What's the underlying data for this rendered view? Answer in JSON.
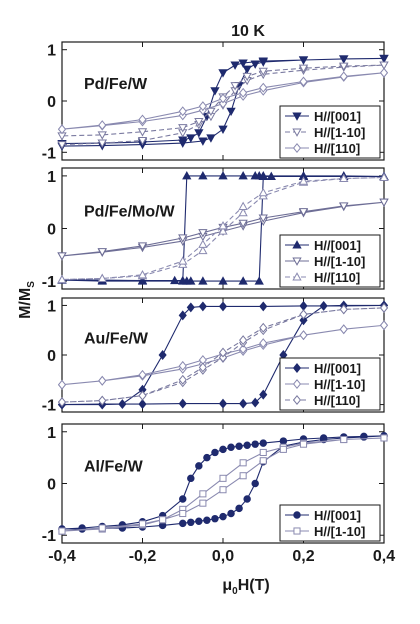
{
  "figure": {
    "title": "10 K",
    "ylabel": "M/M",
    "ylabel_sub": "S",
    "xlabel_mu": "μ",
    "xlabel_sub": "0",
    "xlabel_rest": "H(T)"
  },
  "chart_data": [
    {
      "type": "line",
      "label": "Pd/Fe/W",
      "xlim": [
        -0.4,
        0.4
      ],
      "ylim": [
        -1.15,
        1.15
      ],
      "x_ticks": [
        "-0,4",
        "-0,2",
        "0,0",
        "0,2",
        "0,4"
      ],
      "y_ticks": [
        "1",
        "0",
        "-1"
      ],
      "legend_position": "bottom-right",
      "series": [
        {
          "name": "H//[001]",
          "color": "#1f2a6e",
          "marker": "triangle-down",
          "filled": true,
          "style": "solid",
          "x": [
            -0.4,
            -0.3,
            -0.2,
            -0.1,
            -0.05,
            -0.03,
            0.0,
            0.02,
            0.04,
            0.06,
            0.08,
            0.1,
            0.2,
            0.3,
            0.4,
            0.4,
            0.3,
            0.2,
            0.1,
            0.05,
            0.03,
            0.0,
            -0.02,
            -0.04,
            -0.06,
            -0.08,
            -0.1,
            -0.2,
            -0.3,
            -0.4
          ],
          "y": [
            -0.88,
            -0.87,
            -0.85,
            -0.82,
            -0.78,
            -0.72,
            -0.55,
            -0.2,
            0.3,
            0.62,
            0.72,
            0.76,
            0.8,
            0.82,
            0.83,
            0.83,
            0.82,
            0.8,
            0.78,
            0.74,
            0.7,
            0.55,
            0.2,
            -0.3,
            -0.62,
            -0.72,
            -0.76,
            -0.8,
            -0.82,
            -0.83
          ]
        },
        {
          "name": "H//[1-10]",
          "color": "#7a7aa0",
          "marker": "triangle-down",
          "filled": false,
          "style": "dash",
          "x": [
            -0.4,
            -0.3,
            -0.2,
            -0.1,
            -0.06,
            -0.03,
            0.0,
            0.03,
            0.06,
            0.1,
            0.2,
            0.3,
            0.4,
            0.4,
            0.3,
            0.2,
            0.1,
            0.06,
            0.03,
            0.0,
            -0.03,
            -0.06,
            -0.1,
            -0.2,
            -0.3,
            -0.4
          ],
          "y": [
            -0.85,
            -0.82,
            -0.77,
            -0.62,
            -0.46,
            -0.3,
            -0.08,
            0.2,
            0.4,
            0.52,
            0.6,
            0.66,
            0.7,
            0.7,
            0.68,
            0.64,
            0.58,
            0.48,
            0.3,
            0.08,
            -0.2,
            -0.4,
            -0.52,
            -0.6,
            -0.66,
            -0.68
          ]
        },
        {
          "name": "H//[110]",
          "color": "#8a8ab0",
          "marker": "diamond",
          "filled": false,
          "style": "solid",
          "x": [
            -0.4,
            -0.3,
            -0.2,
            -0.1,
            -0.05,
            0.0,
            0.05,
            0.1,
            0.2,
            0.3,
            0.4,
            0.4,
            0.3,
            0.2,
            0.1,
            0.05,
            0.0,
            -0.05,
            -0.1,
            -0.2,
            -0.3,
            -0.4
          ],
          "y": [
            -0.55,
            -0.48,
            -0.4,
            -0.28,
            -0.18,
            -0.05,
            0.1,
            0.2,
            0.36,
            0.47,
            0.55,
            0.55,
            0.48,
            0.38,
            0.26,
            0.16,
            0.05,
            -0.1,
            -0.2,
            -0.36,
            -0.47,
            -0.55
          ]
        }
      ]
    },
    {
      "type": "line",
      "label": "Pd/Fe/Mo/W",
      "xlim": [
        -0.4,
        0.4
      ],
      "ylim": [
        -1.15,
        1.15
      ],
      "x_ticks": [
        "-0,4",
        "-0,2",
        "0,0",
        "0,2",
        "0,4"
      ],
      "y_ticks": [
        "1",
        "0",
        "-1"
      ],
      "legend_position": "bottom-right",
      "series": [
        {
          "name": "H//[001]",
          "color": "#1f2a6e",
          "marker": "triangle-up",
          "filled": true,
          "style": "solid",
          "x": [
            -0.4,
            -0.3,
            -0.2,
            -0.12,
            -0.1,
            -0.09,
            -0.05,
            0.0,
            0.05,
            0.08,
            0.09,
            0.1,
            0.2,
            0.3,
            0.4,
            0.4,
            0.3,
            0.2,
            0.12,
            0.1,
            0.09,
            0.05,
            0.0,
            -0.05,
            -0.08,
            -0.09,
            -0.1,
            -0.2,
            -0.3,
            -0.4
          ],
          "y": [
            -0.98,
            -0.98,
            -0.99,
            -0.99,
            -0.99,
            1.0,
            1.0,
            1.0,
            1.0,
            1.0,
            1.0,
            1.0,
            1.0,
            1.0,
            0.99,
            0.99,
            0.99,
            0.99,
            0.99,
            0.99,
            -1.0,
            -1.0,
            -1.0,
            -1.0,
            -1.0,
            -1.0,
            -1.0,
            -1.0,
            -1.0,
            -0.98
          ]
        },
        {
          "name": "H//[1-10]",
          "color": "#6e6e96",
          "marker": "triangle-down",
          "filled": false,
          "style": "solid",
          "x": [
            -0.4,
            -0.3,
            -0.2,
            -0.1,
            -0.05,
            0.0,
            0.05,
            0.1,
            0.2,
            0.3,
            0.4,
            0.4,
            0.3,
            0.2,
            0.1,
            0.05,
            0.0,
            -0.05,
            -0.1,
            -0.2,
            -0.3,
            -0.4
          ],
          "y": [
            -0.52,
            -0.45,
            -0.36,
            -0.24,
            -0.15,
            -0.05,
            0.05,
            0.14,
            0.3,
            0.42,
            0.5,
            0.5,
            0.43,
            0.32,
            0.2,
            0.1,
            0.02,
            -0.08,
            -0.18,
            -0.33,
            -0.44,
            -0.52
          ]
        },
        {
          "name": "H//[110]",
          "color": "#8a8ab0",
          "marker": "triangle-up",
          "filled": false,
          "style": "dash",
          "x": [
            -0.4,
            -0.3,
            -0.2,
            -0.1,
            -0.05,
            0.0,
            0.05,
            0.1,
            0.2,
            0.3,
            0.4,
            0.4,
            0.3,
            0.2,
            0.1,
            0.05,
            0.0,
            -0.05,
            -0.1,
            -0.2,
            -0.3,
            -0.4
          ],
          "y": [
            -0.97,
            -0.95,
            -0.9,
            -0.68,
            -0.42,
            -0.05,
            0.3,
            0.62,
            0.88,
            0.95,
            0.97,
            0.97,
            0.95,
            0.9,
            0.68,
            0.42,
            0.05,
            -0.3,
            -0.62,
            -0.88,
            -0.95,
            -0.97
          ]
        }
      ]
    },
    {
      "type": "line",
      "label": "Au/Fe/W",
      "xlim": [
        -0.4,
        0.4
      ],
      "ylim": [
        -1.15,
        1.15
      ],
      "x_ticks": [
        "-0,4",
        "-0,2",
        "0,0",
        "0,2",
        "0,4"
      ],
      "y_ticks": [
        "1",
        "0",
        "-1"
      ],
      "legend_position": "bottom-right",
      "series": [
        {
          "name": "H//[001]",
          "color": "#1f2a6e",
          "marker": "diamond",
          "filled": true,
          "style": "solid",
          "x": [
            -0.4,
            -0.3,
            -0.25,
            -0.2,
            -0.15,
            -0.1,
            -0.08,
            -0.05,
            0.0,
            0.1,
            0.2,
            0.3,
            0.4,
            0.4,
            0.3,
            0.25,
            0.2,
            0.15,
            0.1,
            0.08,
            0.05,
            0.0,
            -0.1,
            -0.2,
            -0.3,
            -0.4
          ],
          "y": [
            -1.0,
            -1.0,
            -0.99,
            -0.7,
            0.0,
            0.8,
            0.96,
            0.98,
            0.98,
            0.98,
            0.99,
            0.99,
            1.0,
            1.0,
            1.0,
            0.99,
            0.7,
            0.0,
            -0.8,
            -0.96,
            -0.98,
            -0.98,
            -0.98,
            -0.99,
            -0.99,
            -1.0
          ]
        },
        {
          "name": "H//[1-10]",
          "color": "#8a8ab0",
          "marker": "diamond",
          "filled": false,
          "style": "solid",
          "x": [
            -0.4,
            -0.3,
            -0.2,
            -0.1,
            -0.05,
            0.0,
            0.05,
            0.1,
            0.2,
            0.3,
            0.4,
            0.4,
            0.3,
            0.2,
            0.1,
            0.05,
            0.0,
            -0.05,
            -0.1,
            -0.2,
            -0.3,
            -0.4
          ],
          "y": [
            -0.6,
            -0.52,
            -0.42,
            -0.28,
            -0.18,
            -0.06,
            0.08,
            0.2,
            0.4,
            0.52,
            0.6,
            0.6,
            0.52,
            0.4,
            0.24,
            0.12,
            0.02,
            -0.1,
            -0.22,
            -0.4,
            -0.52,
            -0.6
          ]
        },
        {
          "name": "H//[110]",
          "color": "#7a7aa0",
          "marker": "diamond",
          "filled": false,
          "style": "dash",
          "x": [
            -0.4,
            -0.3,
            -0.2,
            -0.1,
            -0.05,
            0.0,
            0.05,
            0.1,
            0.2,
            0.3,
            0.4,
            0.4,
            0.3,
            0.2,
            0.1,
            0.05,
            0.0,
            -0.05,
            -0.1,
            -0.2,
            -0.3,
            -0.4
          ],
          "y": [
            -0.95,
            -0.92,
            -0.82,
            -0.55,
            -0.3,
            -0.05,
            0.25,
            0.5,
            0.82,
            0.92,
            0.95,
            0.95,
            0.92,
            0.82,
            0.55,
            0.3,
            0.05,
            -0.25,
            -0.5,
            -0.82,
            -0.92,
            -0.95
          ]
        }
      ]
    },
    {
      "type": "line",
      "label": "Al/Fe/W",
      "xlim": [
        -0.4,
        0.4
      ],
      "ylim": [
        -1.15,
        1.15
      ],
      "x_ticks": [
        "-0,4",
        "-0,2",
        "0,0",
        "0,2",
        "0,4"
      ],
      "y_ticks": [
        "1",
        "0",
        "-1"
      ],
      "legend_position": "bottom-right",
      "series": [
        {
          "name": "H//[001]",
          "color": "#1f2a6e",
          "marker": "circle",
          "filled": true,
          "style": "solid",
          "x": [
            -0.4,
            -0.35,
            -0.3,
            -0.25,
            -0.2,
            -0.15,
            -0.1,
            -0.08,
            -0.06,
            -0.04,
            -0.02,
            0.0,
            0.02,
            0.04,
            0.06,
            0.08,
            0.1,
            0.15,
            0.2,
            0.25,
            0.3,
            0.35,
            0.4,
            0.4,
            0.35,
            0.3,
            0.25,
            0.2,
            0.15,
            0.1,
            0.08,
            0.06,
            0.04,
            0.02,
            0.0,
            -0.02,
            -0.04,
            -0.06,
            -0.08,
            -0.1,
            -0.15,
            -0.2,
            -0.25,
            -0.3,
            -0.35,
            -0.4
          ],
          "y": [
            -0.88,
            -0.86,
            -0.83,
            -0.8,
            -0.74,
            -0.62,
            -0.3,
            0.1,
            0.34,
            0.5,
            0.6,
            0.66,
            0.7,
            0.72,
            0.74,
            0.76,
            0.78,
            0.82,
            0.86,
            0.88,
            0.9,
            0.91,
            0.92,
            0.92,
            0.9,
            0.88,
            0.85,
            0.8,
            0.72,
            0.42,
            0.0,
            -0.3,
            -0.48,
            -0.58,
            -0.64,
            -0.68,
            -0.71,
            -0.73,
            -0.75,
            -0.77,
            -0.81,
            -0.84,
            -0.86,
            -0.87,
            -0.88,
            -0.88
          ]
        },
        {
          "name": "H//[1-10]",
          "color": "#8a8ab0",
          "marker": "square",
          "filled": false,
          "style": "solid",
          "x": [
            -0.4,
            -0.3,
            -0.2,
            -0.15,
            -0.1,
            -0.05,
            0.0,
            0.05,
            0.1,
            0.15,
            0.2,
            0.3,
            0.4,
            0.4,
            0.3,
            0.2,
            0.15,
            0.1,
            0.05,
            0.0,
            -0.05,
            -0.1,
            -0.15,
            -0.2,
            -0.3,
            -0.4
          ],
          "y": [
            -0.92,
            -0.88,
            -0.8,
            -0.7,
            -0.5,
            -0.2,
            0.1,
            0.4,
            0.6,
            0.7,
            0.78,
            0.85,
            0.88,
            0.88,
            0.85,
            0.76,
            0.66,
            0.44,
            0.15,
            -0.12,
            -0.38,
            -0.58,
            -0.7,
            -0.78,
            -0.86,
            -0.92
          ]
        }
      ]
    }
  ]
}
